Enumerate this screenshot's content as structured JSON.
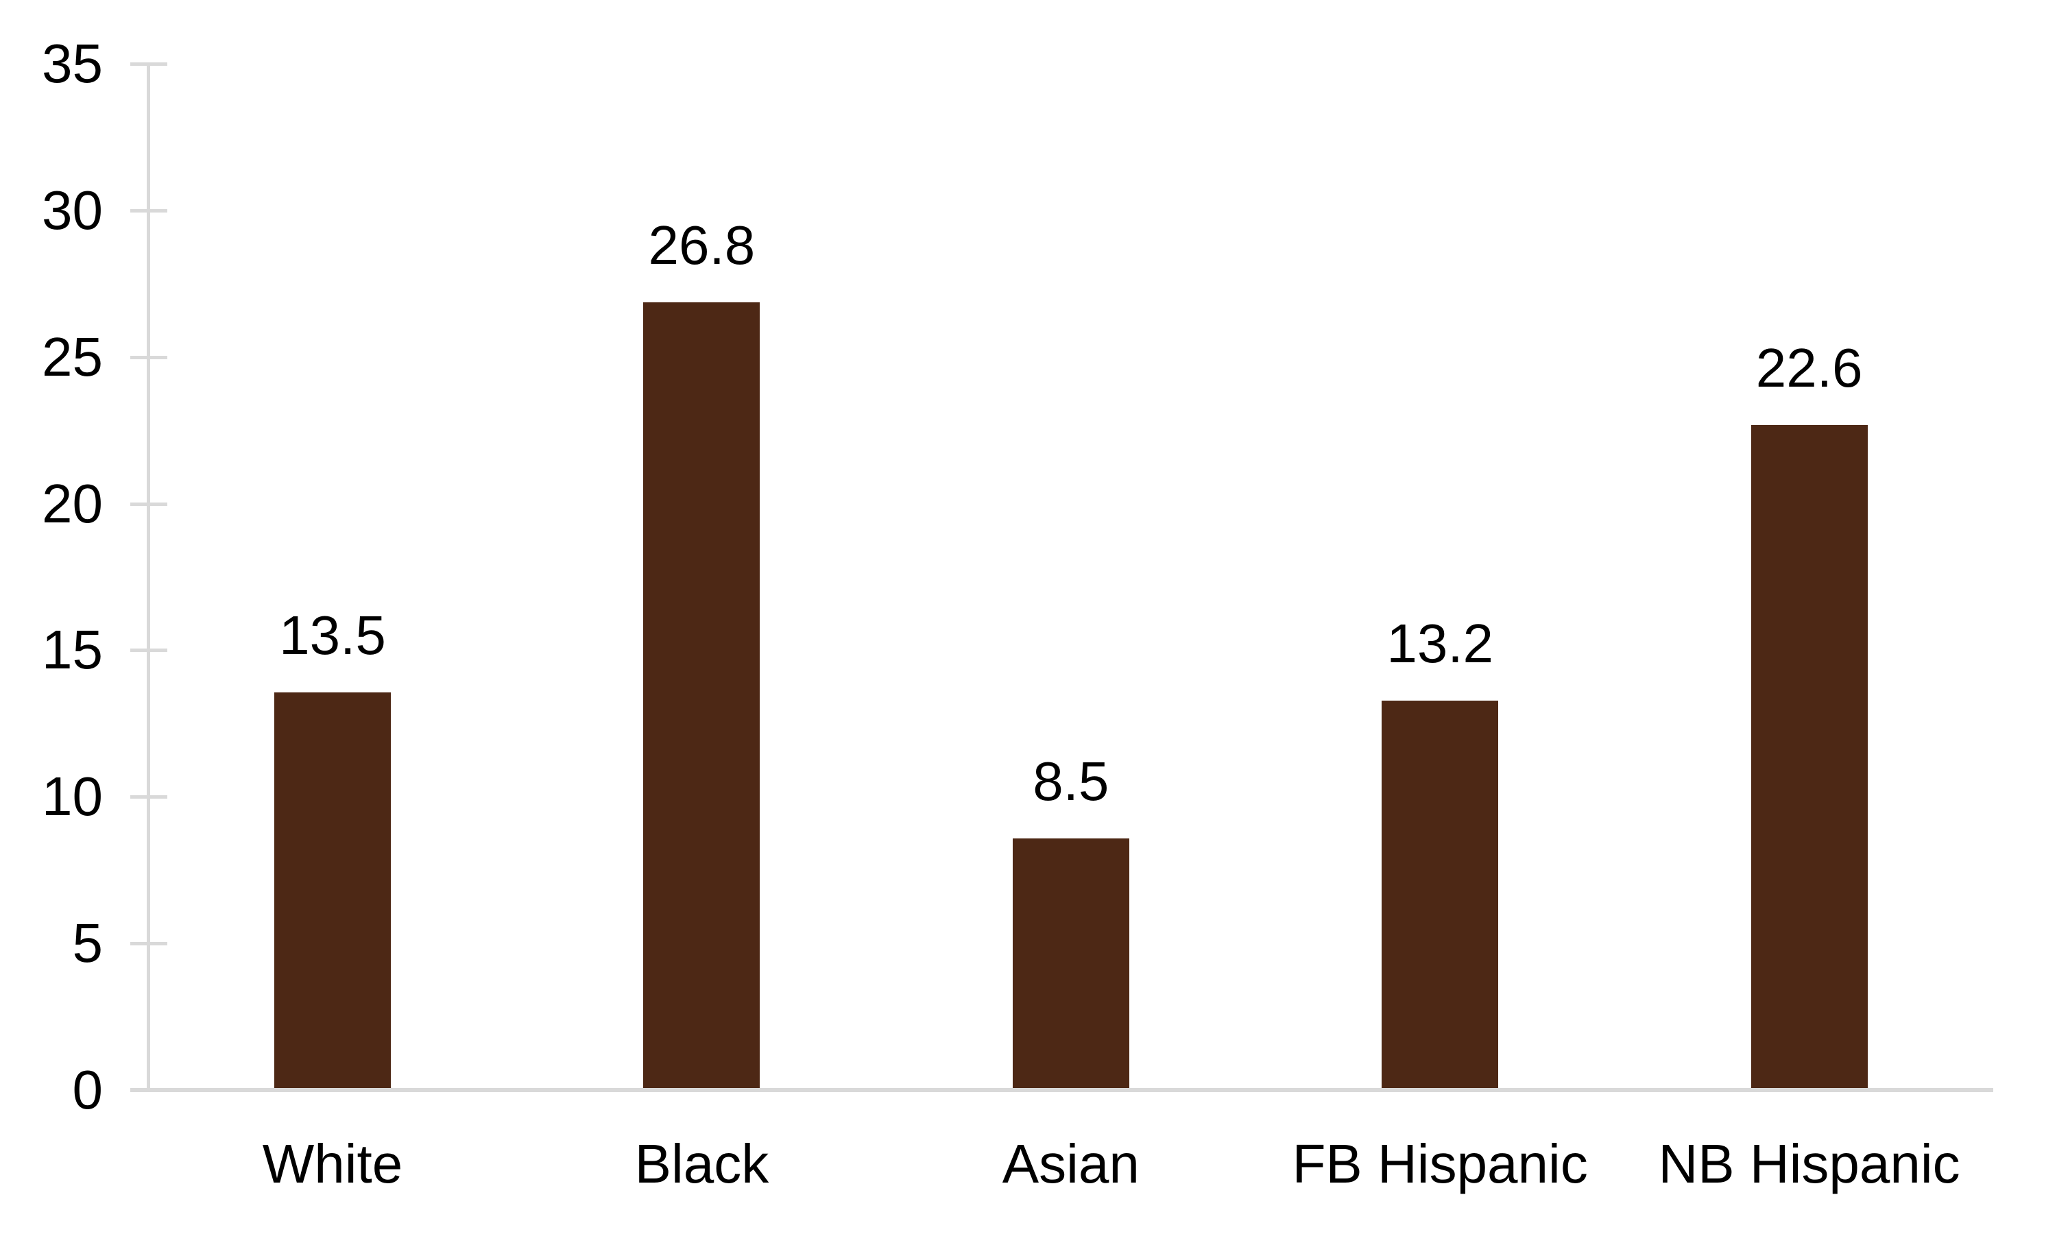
{
  "chart_data": {
    "type": "bar",
    "title": "",
    "xlabel": "",
    "ylabel": "",
    "categories": [
      "White",
      "Black",
      "Asian",
      "FB Hispanic",
      "NB Hispanic"
    ],
    "values": [
      13.5,
      26.8,
      8.5,
      13.2,
      22.6
    ],
    "data_labels": [
      "13.5",
      "26.8",
      "8.5",
      "13.2",
      "22.6"
    ],
    "ylim": [
      0,
      35
    ],
    "ytick_step": 5,
    "ytick_labels": [
      "0",
      "5",
      "10",
      "15",
      "20",
      "25",
      "30",
      "35"
    ],
    "grid": false,
    "legend": false,
    "colors": {
      "bar": "#4D2815",
      "axis": "#D9D9D9",
      "text": "#000000",
      "background": "#FFFFFF"
    }
  }
}
